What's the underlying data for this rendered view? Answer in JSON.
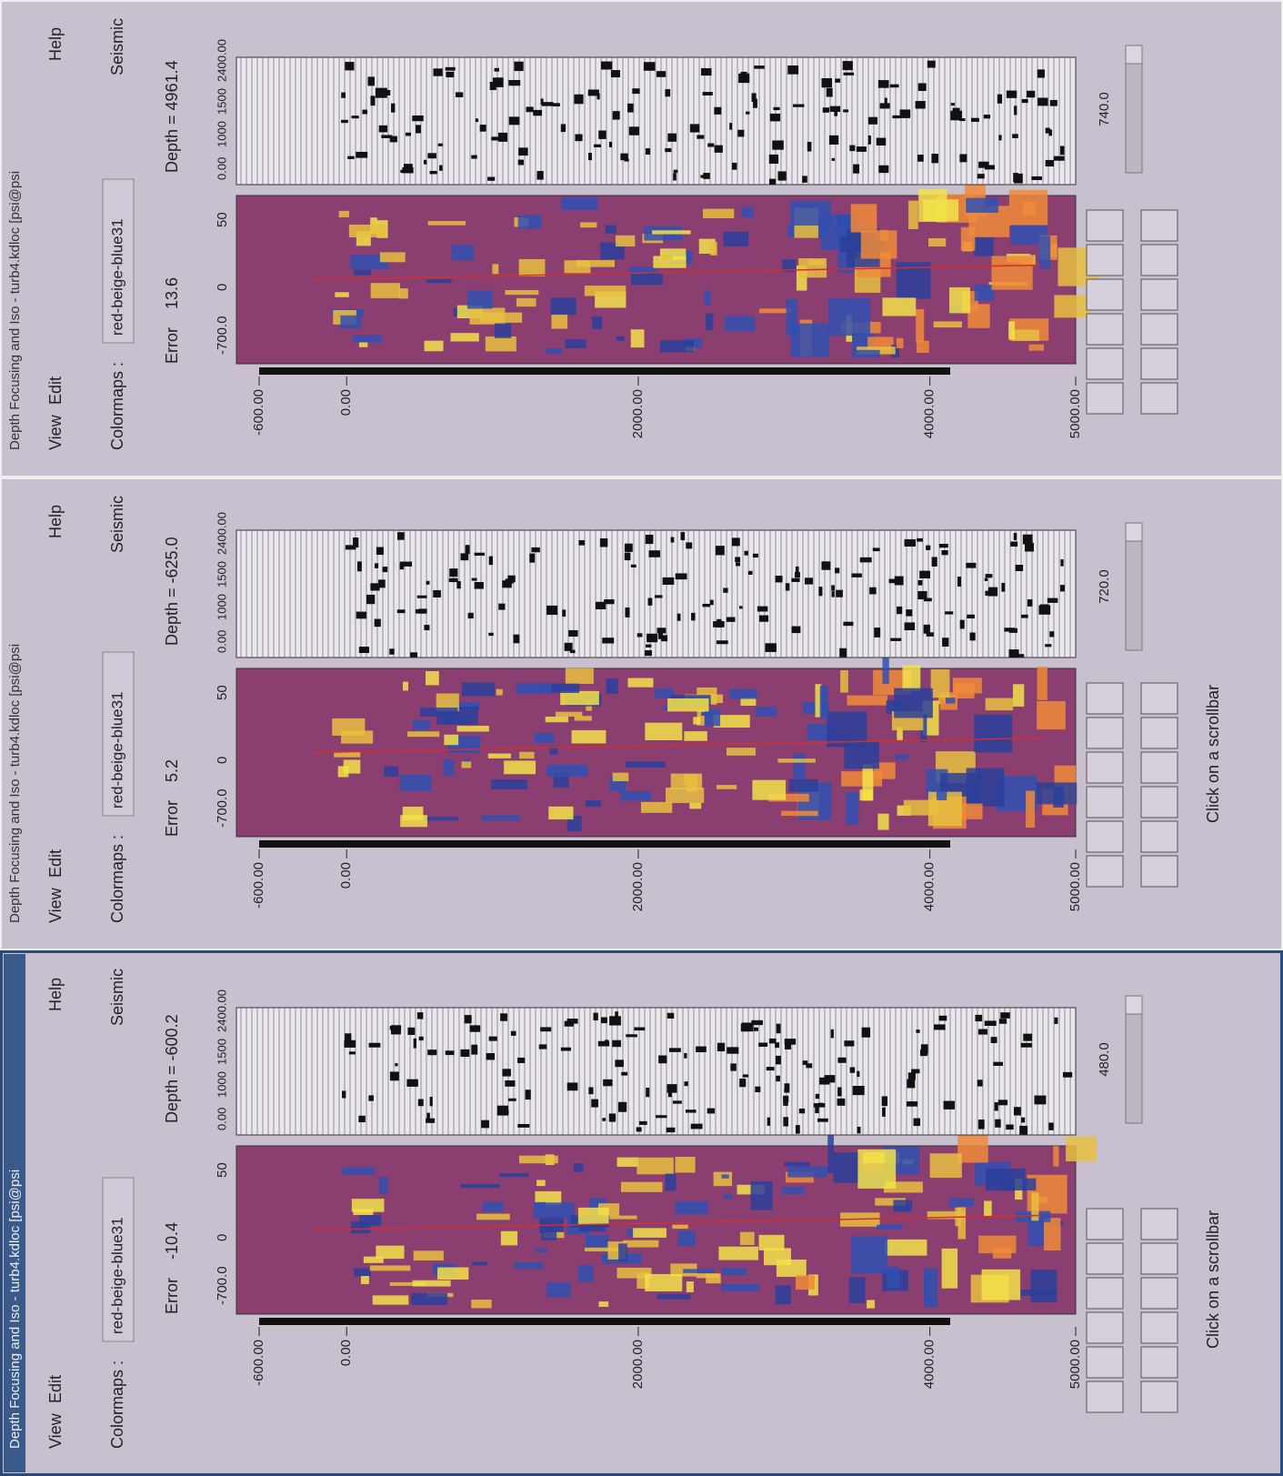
{
  "windows": [
    {
      "title": "Depth Focusing and Iso - turb4.kdloc [psi@psi",
      "menu": [
        "View",
        "Edit",
        "Help"
      ],
      "colormap_label": "Colormaps :",
      "colormap": "red-beige-blue31",
      "seismic_label": "Seismic",
      "error_label": "Error",
      "error": "13.6",
      "depth": "Depth = 4961.4",
      "offset_ticks": [
        "-700.0",
        "0",
        "50"
      ],
      "time_ticks": [
        "0.00",
        "1000",
        "1500",
        "2400.00"
      ],
      "depth_lim": [
        -600,
        5000
      ],
      "depth_ticks": [
        {
          "value": -600,
          "label": "-600.00"
        },
        {
          "value": 0,
          "label": "0.00"
        },
        {
          "value": 2000,
          "label": "2000.00"
        },
        {
          "value": 4000,
          "label": "4000.00"
        },
        {
          "value": 5000,
          "label": "5000.00"
        }
      ],
      "scroll_value": "740.0"
    },
    {
      "title": "Depth Focusing and Iso - turb4.kdloc [psi@psi",
      "menu": [
        "View",
        "Edit",
        "Help"
      ],
      "colormap_label": "Colormaps :",
      "colormap": "red-beige-blue31",
      "seismic_label": "Seismic",
      "error_label": "Error",
      "error": "5.2",
      "depth": "Depth = -625.0",
      "offset_ticks": [
        "-700.0",
        "0",
        "50"
      ],
      "time_ticks": [
        "0.00",
        "1000",
        "1500",
        "2400.00"
      ],
      "depth_lim": [
        -600,
        5000
      ],
      "depth_ticks": [
        {
          "value": -600,
          "label": "-600.00"
        },
        {
          "value": 0,
          "label": "0.00"
        },
        {
          "value": 2000,
          "label": "2000.00"
        },
        {
          "value": 4000,
          "label": "4000.00"
        },
        {
          "value": 5000,
          "label": "5000.00"
        }
      ],
      "scroll_value": "720.0",
      "status": "Click on a scrollbar"
    },
    {
      "title": "Depth Focusing and Iso - turb4.kdloc [psi@psi",
      "menu": [
        "View",
        "Edit",
        "Help"
      ],
      "colormap_label": "Colormaps :",
      "colormap": "red-beige-blue31",
      "seismic_label": "Seismic",
      "error_label": "Error",
      "error": "-10.4",
      "depth": "Depth = -600.2",
      "offset_ticks": [
        "-700.0",
        "0",
        "50"
      ],
      "time_ticks": [
        "0.00",
        "1000",
        "1500",
        "2400.00"
      ],
      "depth_lim": [
        -600,
        5000
      ],
      "depth_ticks": [
        {
          "value": -600,
          "label": "-600.00"
        },
        {
          "value": 0,
          "label": "0.00"
        },
        {
          "value": 2000,
          "label": "2000.00"
        },
        {
          "value": 4000,
          "label": "4000.00"
        },
        {
          "value": 5000,
          "label": "5000.00"
        }
      ],
      "scroll_value": "480.0",
      "status": "Click on a scrollbar"
    }
  ]
}
